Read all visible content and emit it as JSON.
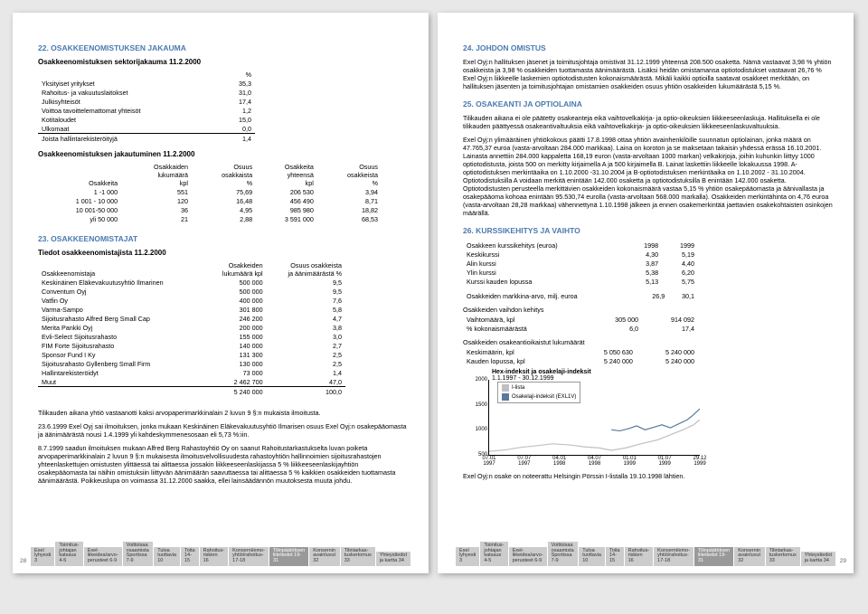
{
  "left": {
    "s22_title": "22. OSAKKEENOMISTUKSEN JAKAUMA",
    "s22_sub": "Osakkeenomistuksen sektorijakauma 11.2.2000",
    "s22_pct": "%",
    "s22_rows": [
      [
        "Yksityiset yritykset",
        "35,3"
      ],
      [
        "Rahoitus- ja vakuutuslaitokset",
        "31,0"
      ],
      [
        "Julkisyhteisöt",
        "17,4"
      ],
      [
        "Voittoa tavoittelemattomat yhteisöt",
        "1,2"
      ],
      [
        "Kotitaloudet",
        "15,0"
      ],
      [
        "Ulkomaat",
        "0,0"
      ]
    ],
    "s22_rows2": [
      [
        "Joista hallintarekisteröityjä",
        "1,4"
      ]
    ],
    "s22_dist_title": "Osakkeenomistuksen jakautuminen 11.2.2000",
    "s22_dist_head": [
      "Osakkeita",
      "Osakkaiden\nlukumäärä\nkpl",
      "Osuus\nosakkaista\n%",
      "Osakkeita\nyhteensä\nkpl",
      "Osuus\nosakkeista\n%"
    ],
    "s22_dist_rows": [
      [
        "1 -1 000",
        "551",
        "75,69",
        "206 530",
        "3,94"
      ],
      [
        "1 001 - 10 000",
        "120",
        "16,48",
        "456 490",
        "8,71"
      ],
      [
        "10 001-50 000",
        "36",
        "4,95",
        "985 980",
        "18,82"
      ],
      [
        "yli 50 000",
        "21",
        "2,88",
        "3 591 000",
        "68,53"
      ]
    ],
    "s23_title": "23. OSAKKEENOMISTAJAT",
    "s23_sub": "Tiedot osakkeenomistajista 11.2.2000",
    "s23_head": [
      "Osakkeenomistaja",
      "Osakkeiden\nlukumäärä kpl",
      "Osuus osakkeista\nja äänimäärästä %"
    ],
    "s23_rows": [
      [
        "Keskinäinen Eläkevakuutusyhtiö Ilmarinen",
        "500 000",
        "9,5"
      ],
      [
        "Conventum Oyj",
        "500 000",
        "9,5"
      ],
      [
        "Vatfin Oy",
        "400 000",
        "7,6"
      ],
      [
        "Varma-Sampo",
        "301 800",
        "5,8"
      ],
      [
        "Sijoitusrahasto Alfred Berg Small Cap",
        "246 200",
        "4,7"
      ],
      [
        "Merita Pankki Oyj",
        "200 000",
        "3,8"
      ],
      [
        "Evli-Select Sijoitusrahasto",
        "155 000",
        "3,0"
      ],
      [
        "FIM Forte Sijoitusrahasto",
        "140 000",
        "2,7"
      ],
      [
        "Sponsor Fund I Ky",
        "131 300",
        "2,5"
      ],
      [
        "Sijoitusrahasto Gyllenberg Small Firm",
        "130 000",
        "2,5"
      ],
      [
        "Hallintarekisteröidyt",
        "73 000",
        "1,4"
      ],
      [
        "Muut",
        "2 462 700",
        "47,0"
      ]
    ],
    "s23_total": [
      "",
      "5 240 000",
      "100,0"
    ],
    "p1": "Tilikauden aikana yhtiö vastaanotti kaksi arvopaperimarkkinalain 2 luvun 9 §:n mukaista ilmoitusta.",
    "p2": "23.6.1999 Exel Oyj sai ilmoituksen, jonka mukaan Keskinäinen Eläkevakuutusyhtiö Ilmarisen osuus Exel Oyj:n osakepääomasta ja äänimäärästä nousi 1.4.1999 yli kahdeskymmenesosaan eli 5,73 %:iin.",
    "p3": "8.7.1999 saadun ilmoituksen mukaan Alfred Berg Rahastoyhtiö Oy on saanut Rahoitustarkastukselta luvan poiketa arvopaperimarkkinalain 2 luvun 9 §:n mukaisesta ilmoitusvelvollisuudesta rahastoyhtiön hallinnoimien sijoitusrahastojen yhteenlaskettujen omistusten ylittäessä tai alittaessa jossakin liikkeeseenlaskijassa 5 % liikkeeseenlaskijayhtiön osakepääomasta tai näihin omistuksiin liittyvän äänimäärän saavuttaessa tai alittaessa 5 % kaikkien osakkeiden tuottamasta äänimäärästä. Poikkeuslupa on voimassa 31.12.2000 saakka, ellei lainsäädännön muutoksesta muuta johdu.",
    "page_num": "28"
  },
  "right": {
    "s24_title": "24. JOHDON OMISTUS",
    "s24_p": "Exel Oyj:n hallituksen jäsenet ja toimitusjohtaja omistivat 31.12.1999 yhteensä 208.500 osaketta. Nämä vastaavat 3,98 % yhtiön osakkeista ja 3,98 % osakkeiden tuottamasta äänimäärästä. Lisäksi heidän omistamansa optiotodistukset vastaavat 26,76 % Exel Oyj:n liikkeelle laskemien optiotodistusten kokonaismäärästä. Mikäli kaikki optioilla saatavat osakkeet merkitään, on hallituksen jäsenten ja toimitusjohtajan omistamien osakkeiden osuus yhtiön osakkeiden lukumäärästä 5,15 %.",
    "s25_title": "25. OSAKEANTI JA OPTIOLAINA",
    "s25_p1": "Tilikauden aikana ei ole päätetty osakeanteja eikä vaihtovelkakirja- ja optio-oikeuksien liikkeeseenlaskuja. Hallituksella ei ole tilikauden päättyessä osakeantivaltuuksia eikä vaihtovelkakirja- ja optio-oikeuksien liikkeeseenlaskuvaltuuksia.",
    "s25_p2": "Exel Oyj:n ylimääräinen yhtiökokous päätti 17.8.1998 ottaa yhtiön avainhenkilöille suunnatun optiolainan, jonka määrä on 47.765,37 euroa (vasta-arvoltaan 284.000 markkaa). Laina on koroton ja se maksetaan takaisin yhdessä erässä 16.10.2001. Lainasta annettiin 284.000 kappaletta 168,19 euron (vasta-arvoltaan 1000 markan) velkakirjoja, joihin kuhunkin liittyy 1000 optiotodistusta, joista 500 on merkitty kirjaimella A ja 500 kirjaimella B. Lainat laskettiin liikkeelle lokakuussa 1998. A-optiotodistuksen merkintäaika on 1.10.2000 -31.10.2004 ja B-optiotodistuksen merkintäaika on 1.10.2002 - 31.10.2004. Optiotodistuksilla A voidaan merkitä enintään 142.000 osaketta ja optiotodistuksilla B enintään 142.000 osaketta. Optiotodistusten perusteella merkittävien osakkeiden kokonaismäärä vastaa 5,15 % yhtiön osakepääomasta ja äänivallasta ja osakepääoma kohoaa enintään 95.530,74 eurolla (vasta-arvoltaan 568.000 markalla). Osakkeiden merkintähinta on 4,76 euroa (vasta-arvoltaan 28,28 markkaa) vähennettynä 1.10.1998 jälkeen ja ennen osakemerkintää jaettavien osakekohtaisten osinkojen määrällä.",
    "s26_title": "26. KURSSIKEHITYS JA VAIHTO",
    "s26_t1_head": [
      "Osakkeen kurssikehitys (euroa)",
      "1998",
      "1999"
    ],
    "s26_t1_rows": [
      [
        "Keskikurssi",
        "4,30",
        "5,19"
      ],
      [
        "Alin kurssi",
        "3,87",
        "4,40"
      ],
      [
        "Ylin kurssi",
        "5,38",
        "6,20"
      ],
      [
        "Kurssi kauden lopussa",
        "5,13",
        "5,75"
      ]
    ],
    "s26_t2": [
      "Osakkeiden markkina-arvo, milj. euroa",
      "26,9",
      "30,1"
    ],
    "s26_t3_title": "Osakkeiden vaihdon kehitys",
    "s26_t3_rows": [
      [
        "Vaihtomäärä, kpl",
        "305 000",
        "914 092"
      ],
      [
        "% kokonaismäärästä",
        "6,0",
        "17,4"
      ]
    ],
    "s26_t4_title": "Osakkeiden osakeantioikaistut lukumäärät",
    "s26_t4_rows": [
      [
        "Keskimäärin, kpl",
        "5 050 630",
        "5 240 000"
      ],
      [
        "Kauden lopussa, kpl",
        "5 240 000",
        "5 240 000"
      ]
    ],
    "chart": {
      "title": "Hex-indeksit ja osakelaji-indeksit",
      "subtitle": "1.1.1997 - 30.12.1999",
      "ylim": [
        500,
        2000
      ],
      "yticks": [
        500,
        1000,
        1500,
        2000
      ],
      "xticks": [
        "07.01\n1997",
        "07.07\n1997",
        "04.01\n1998",
        "04.07\n1998",
        "01.01\n1999",
        "01.07\n1999",
        "29.12\n1999"
      ],
      "legend": [
        {
          "label": "I-lista",
          "color": "#c0c0c0"
        },
        {
          "label": "Osakelaji-indeksit (EXL1V)",
          "color": "#5a7a9a"
        }
      ],
      "series": [
        {
          "color": "#c0c0c0",
          "points": [
            [
              0,
              570
            ],
            [
              0.08,
              600
            ],
            [
              0.15,
              650
            ],
            [
              0.22,
              680
            ],
            [
              0.3,
              720
            ],
            [
              0.38,
              700
            ],
            [
              0.45,
              660
            ],
            [
              0.52,
              640
            ],
            [
              0.58,
              590
            ],
            [
              0.65,
              640
            ],
            [
              0.72,
              720
            ],
            [
              0.8,
              800
            ],
            [
              0.86,
              900
            ],
            [
              0.92,
              1000
            ],
            [
              0.97,
              1100
            ],
            [
              1,
              1200
            ]
          ]
        },
        {
          "color": "#5a7a9a",
          "points": [
            [
              0.58,
              1000
            ],
            [
              0.62,
              980
            ],
            [
              0.66,
              1020
            ],
            [
              0.7,
              1080
            ],
            [
              0.74,
              1000
            ],
            [
              0.78,
              1050
            ],
            [
              0.82,
              1100
            ],
            [
              0.86,
              1040
            ],
            [
              0.9,
              1120
            ],
            [
              0.94,
              1200
            ],
            [
              0.97,
              1300
            ],
            [
              1,
              1420
            ]
          ]
        }
      ]
    },
    "s26_foot": "Exel Oyj:n osake on noteerattu Helsingin Pörssin I-listalla 19.10.1998 lähtien.",
    "page_num": "29"
  },
  "tabs": [
    "Exel\nlyhyesti 3",
    "Toimitus-\njohtajan\nkatsaus 4-5",
    "Exel-\nliikeidea/arvo-\nperusteet 6-9",
    "Voittoisaa\nosaamista\nSportissa 7-9",
    "Tuloa\ntuottavia\n10",
    "Toita\n14-15",
    "Rahoitus-\nriskien\n16",
    "Konserni/emo-\nyhtiö/rahoitus-\n17-18",
    "Tilinpäätöksen\nliitetiedot 19-31",
    "Konsernin\navainluvut 32",
    "Tilintarkas-\ntuskertomus 33",
    "Yhteystiedot\nja kartta 34"
  ]
}
